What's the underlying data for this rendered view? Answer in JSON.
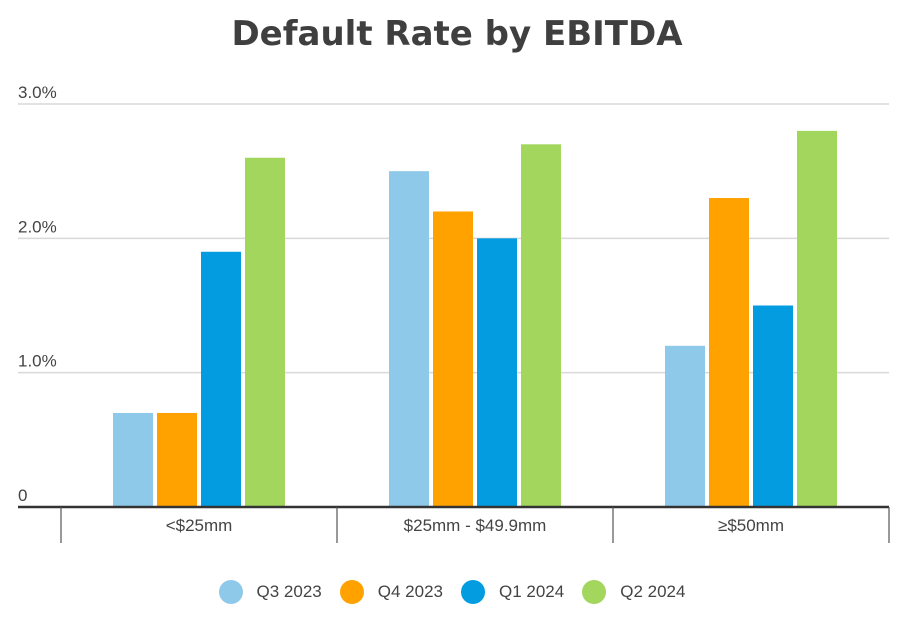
{
  "chart_data": {
    "type": "bar",
    "title": "Default Rate by EBITDA",
    "categories": [
      "<$25mm",
      "$25mm - $49.9mm",
      "≥$50mm"
    ],
    "series": [
      {
        "name": "Q3 2023",
        "color": "#8ec9e9",
        "values": [
          0.7,
          2.5,
          1.2
        ]
      },
      {
        "name": "Q4 2023",
        "color": "#ffa200",
        "values": [
          0.7,
          2.2,
          2.3
        ]
      },
      {
        "name": "Q1 2024",
        "color": "#039ce0",
        "values": [
          1.9,
          2.0,
          1.5
        ]
      },
      {
        "name": "Q2 2024",
        "color": "#a3d65c",
        "values": [
          2.6,
          2.7,
          2.8
        ]
      }
    ],
    "y_ticks": [
      {
        "value": 0,
        "label": "0"
      },
      {
        "value": 1,
        "label": "1.0%"
      },
      {
        "value": 2,
        "label": "2.0%"
      },
      {
        "value": 3,
        "label": "3.0%"
      }
    ],
    "ylim": [
      0,
      3
    ],
    "xlabel": "",
    "ylabel": "",
    "grid": true,
    "legend_position": "bottom"
  }
}
